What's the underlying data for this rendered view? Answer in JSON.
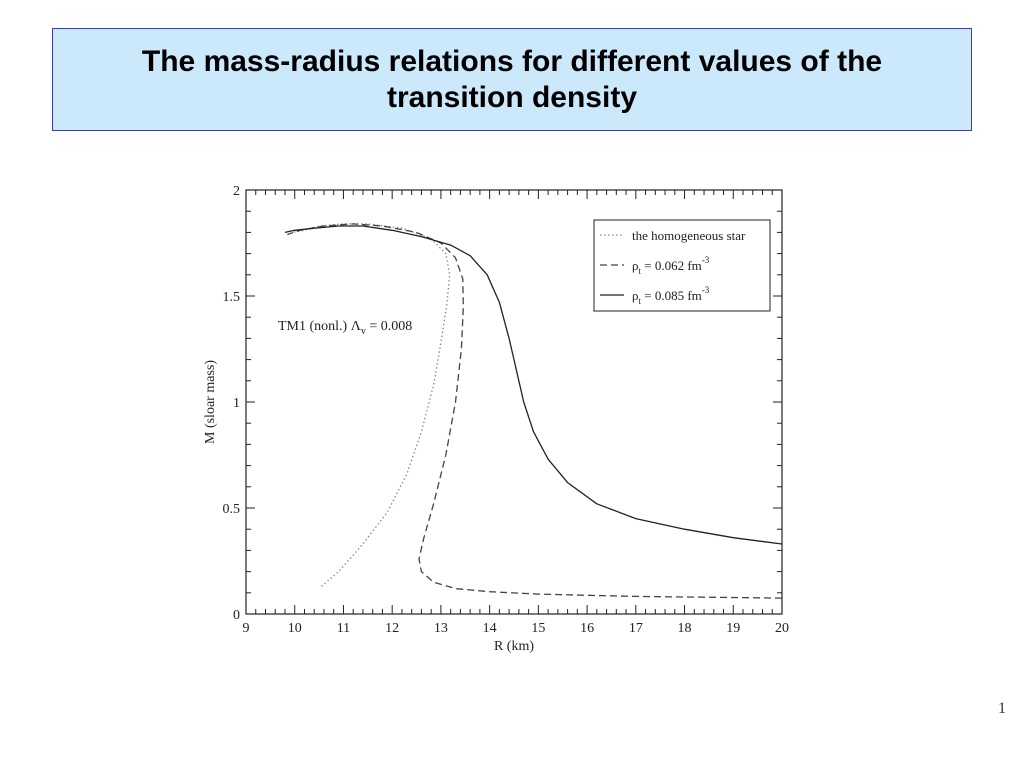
{
  "slide": {
    "title": "The mass-radius relations for different values of the transition density",
    "page_number": "1"
  },
  "chart_data": {
    "type": "line",
    "xlabel": "R (km)",
    "ylabel": "M (sloar mass)",
    "xlim": [
      9,
      20
    ],
    "ylim": [
      0,
      2
    ],
    "x_ticks": [
      9,
      10,
      11,
      12,
      13,
      14,
      15,
      16,
      17,
      18,
      19,
      20
    ],
    "y_ticks": [
      0,
      0.5,
      1,
      1.5,
      2
    ],
    "y_tick_labels": [
      "0",
      "0.5",
      "1",
      "1.5",
      "2"
    ],
    "annotation": {
      "prefix": "TM1 (nonl.) Λ",
      "sub": "v",
      "suffix": " = 0.008"
    },
    "legend_placement": "top-right",
    "series": [
      {
        "name": "the homogeneous star",
        "style": "dotted",
        "color": "#888888",
        "points": [
          [
            10.55,
            0.13
          ],
          [
            10.9,
            0.2
          ],
          [
            11.4,
            0.33
          ],
          [
            11.9,
            0.48
          ],
          [
            12.3,
            0.66
          ],
          [
            12.6,
            0.86
          ],
          [
            12.85,
            1.08
          ],
          [
            13.0,
            1.28
          ],
          [
            13.12,
            1.46
          ],
          [
            13.18,
            1.6
          ],
          [
            13.1,
            1.7
          ],
          [
            12.8,
            1.77
          ],
          [
            12.2,
            1.82
          ],
          [
            11.5,
            1.84
          ],
          [
            11.0,
            1.84
          ],
          [
            10.5,
            1.83
          ],
          [
            10.2,
            1.81
          ],
          [
            9.95,
            1.8
          ]
        ]
      },
      {
        "name": "ρ_t = 0.062 fm^-3",
        "label_rho": "ρ",
        "label_sub": "t",
        "label_value": " = 0.062 fm",
        "label_sup": "-3",
        "style": "dashed",
        "color": "#444444",
        "points": [
          [
            20.0,
            0.075
          ],
          [
            19.0,
            0.078
          ],
          [
            18.0,
            0.08
          ],
          [
            17.0,
            0.083
          ],
          [
            16.0,
            0.088
          ],
          [
            15.0,
            0.094
          ],
          [
            14.0,
            0.105
          ],
          [
            13.3,
            0.12
          ],
          [
            12.85,
            0.15
          ],
          [
            12.6,
            0.2
          ],
          [
            12.55,
            0.26
          ],
          [
            12.65,
            0.36
          ],
          [
            12.85,
            0.52
          ],
          [
            13.1,
            0.75
          ],
          [
            13.3,
            1.0
          ],
          [
            13.42,
            1.25
          ],
          [
            13.46,
            1.45
          ],
          [
            13.45,
            1.58
          ],
          [
            13.3,
            1.68
          ],
          [
            13.0,
            1.75
          ],
          [
            12.5,
            1.8
          ],
          [
            11.8,
            1.83
          ],
          [
            11.2,
            1.84
          ],
          [
            10.6,
            1.83
          ],
          [
            10.1,
            1.81
          ],
          [
            9.85,
            1.79
          ]
        ]
      },
      {
        "name": "ρ_t = 0.085 fm^-3",
        "label_rho": "ρ",
        "label_sub": "t",
        "label_value": " = 0.085 fm",
        "label_sup": "-3",
        "style": "solid",
        "color": "#222222",
        "points": [
          [
            20.0,
            0.33
          ],
          [
            19.0,
            0.36
          ],
          [
            18.0,
            0.4
          ],
          [
            17.0,
            0.45
          ],
          [
            16.2,
            0.52
          ],
          [
            15.6,
            0.62
          ],
          [
            15.2,
            0.73
          ],
          [
            14.9,
            0.86
          ],
          [
            14.7,
            1.0
          ],
          [
            14.55,
            1.15
          ],
          [
            14.4,
            1.3
          ],
          [
            14.2,
            1.47
          ],
          [
            13.95,
            1.6
          ],
          [
            13.6,
            1.69
          ],
          [
            13.2,
            1.74
          ],
          [
            12.6,
            1.78
          ],
          [
            12.0,
            1.81
          ],
          [
            11.4,
            1.83
          ],
          [
            10.9,
            1.83
          ],
          [
            10.4,
            1.82
          ],
          [
            10.0,
            1.81
          ],
          [
            9.8,
            1.8
          ]
        ]
      }
    ]
  }
}
